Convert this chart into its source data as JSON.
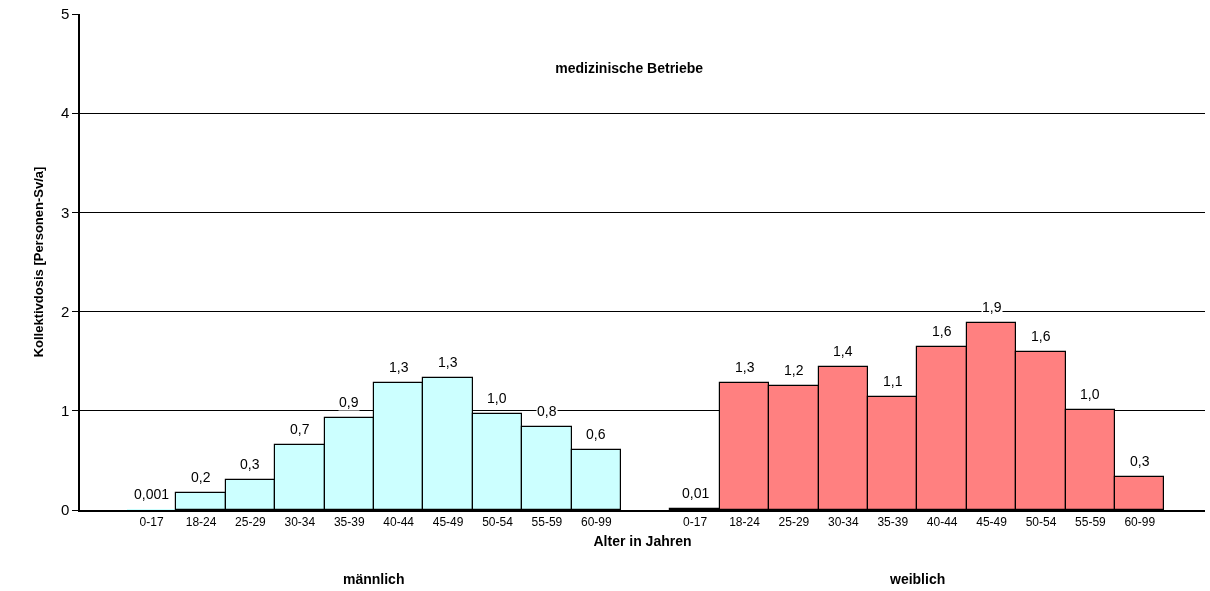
{
  "chart_data": {
    "type": "bar",
    "title": "medizinische Betriebe",
    "xlabel": "Alter in Jahren",
    "ylabel": "Kollektivdosis [Personen-Sv/a]",
    "categories": [
      "0-17",
      "18-24",
      "25-29",
      "30-34",
      "35-39",
      "40-44",
      "45-49",
      "50-54",
      "55-59",
      "60-99",
      null,
      "0-17",
      "18-24",
      "25-29",
      "30-34",
      "35-39",
      "40-44",
      "45-49",
      "50-54",
      "55-59",
      "60-99"
    ],
    "series": [
      {
        "color": "#ccffff",
        "values": [
          0.001,
          0.17,
          0.3,
          0.66,
          0.93,
          1.28,
          1.33,
          0.97,
          0.84,
          0.6,
          null,
          null,
          null,
          null,
          null,
          null,
          null,
          null,
          null,
          null,
          null
        ],
        "value_labels": [
          "0,001",
          "0,2",
          "0,3",
          "0,7",
          "0,9",
          "1,3",
          "1,3",
          "1,0",
          "0,8",
          "0,6",
          null,
          null,
          null,
          null,
          null,
          null,
          null,
          null,
          null,
          null,
          null
        ]
      },
      {
        "color": "#ff8080",
        "values": [
          null,
          null,
          null,
          null,
          null,
          null,
          null,
          null,
          null,
          null,
          null,
          0.01,
          1.28,
          1.25,
          1.44,
          1.14,
          1.64,
          1.89,
          1.59,
          1.01,
          0.33
        ],
        "value_labels": [
          null,
          null,
          null,
          null,
          null,
          null,
          null,
          null,
          null,
          null,
          null,
          "0,01",
          "1,3",
          "1,2",
          "1,4",
          "1,1",
          "1,6",
          "1,9",
          "1,6",
          "1,0",
          "0,3"
        ]
      }
    ],
    "annotations": [
      "männlich",
      "weiblich"
    ],
    "ylim": [
      0,
      5
    ],
    "yticks": [
      0,
      1,
      2,
      3,
      4,
      5
    ],
    "grid": "y"
  }
}
